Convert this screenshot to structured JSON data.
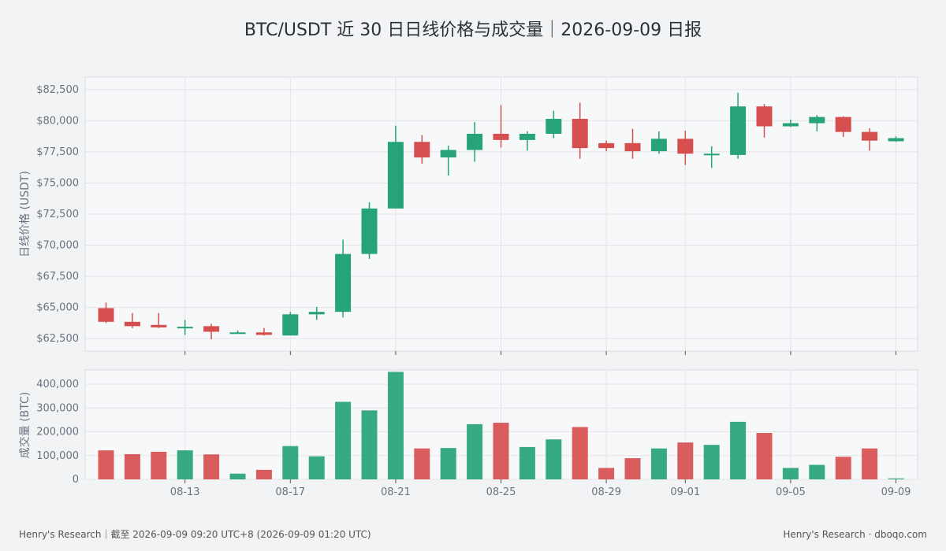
{
  "title": "BTC/USDT 近 30 日日线价格与成交量｜2026-09-09 日报",
  "footer": {
    "left": "Henry's Research｜截至 2026-09-09 09:20 UTC+8 (2026-09-09 01:20 UTC)",
    "right": "Henry's Research · dboqo.com"
  },
  "colors": {
    "up": "#26a37a",
    "down": "#d64f4f",
    "background": "#f2f3f5",
    "panel": "#f7f8fa",
    "grid": "#e3e5e8"
  },
  "chart_data": [
    {
      "type": "candlestick",
      "ylabel": "日线价格 (USDT)",
      "ylim": [
        61500,
        83500
      ],
      "yticks": [
        62500,
        65000,
        67500,
        70000,
        72500,
        75000,
        77500,
        80000,
        82500
      ],
      "ytick_labels": [
        "$62,500",
        "$65,000",
        "$67,500",
        "$70,000",
        "$72,500",
        "$75,000",
        "$77,500",
        "$80,000",
        "$82,500"
      ],
      "grid": true,
      "dates": [
        "08-10",
        "08-11",
        "08-12",
        "08-13",
        "08-14",
        "08-15",
        "08-16",
        "08-17",
        "08-18",
        "08-19",
        "08-20",
        "08-21",
        "08-22",
        "08-23",
        "08-24",
        "08-25",
        "08-26",
        "08-27",
        "08-28",
        "08-29",
        "08-30",
        "08-31",
        "09-01",
        "09-02",
        "09-03",
        "09-04",
        "09-05",
        "09-06",
        "09-07",
        "09-08",
        "09-09"
      ],
      "open": [
        64950,
        63850,
        63600,
        63450,
        63500,
        63000,
        63000,
        62750,
        64450,
        64650,
        69300,
        72950,
        78300,
        77050,
        77650,
        78950,
        78450,
        78950,
        80150,
        78200,
        78200,
        77550,
        78550,
        77350,
        77250,
        81150,
        79550,
        79800,
        80300,
        79100,
        78350
      ],
      "high": [
        65400,
        64550,
        64550,
        64000,
        63700,
        63150,
        63350,
        64650,
        65050,
        70450,
        73450,
        79600,
        78850,
        78000,
        79900,
        81250,
        79150,
        80800,
        81450,
        78400,
        79350,
        79150,
        79200,
        77950,
        82250,
        81350,
        80100,
        80450,
        80350,
        79400,
        78750
      ],
      "low": [
        63750,
        63350,
        63350,
        62800,
        62450,
        62900,
        62750,
        62750,
        64000,
        64200,
        68900,
        72950,
        76550,
        75600,
        76700,
        77850,
        77600,
        78600,
        76950,
        77550,
        76950,
        77350,
        76450,
        76200,
        76950,
        78650,
        79500,
        79150,
        78700,
        77600,
        78300
      ],
      "close": [
        63850,
        63500,
        63400,
        63450,
        63050,
        63000,
        62800,
        64450,
        64650,
        69300,
        72950,
        78300,
        77050,
        77650,
        78950,
        78450,
        78950,
        80150,
        77800,
        77800,
        77550,
        78550,
        77350,
        77350,
        81150,
        79550,
        79800,
        80300,
        79100,
        78400,
        78600
      ]
    },
    {
      "type": "bar",
      "ylabel": "成交量 (BTC)",
      "ylim": [
        0,
        460000
      ],
      "yticks": [
        0,
        100000,
        200000,
        300000,
        400000
      ],
      "ytick_labels": [
        "0",
        "100,000",
        "200,000",
        "300,000",
        "400,000"
      ],
      "grid": true,
      "values": [
        122000,
        106000,
        116000,
        122000,
        105000,
        24000,
        40000,
        140000,
        97000,
        326000,
        290000,
        452000,
        130000,
        132000,
        232000,
        238000,
        136000,
        168000,
        220000,
        48000,
        89000,
        130000,
        155000,
        145000,
        242000,
        195000,
        48000,
        61000,
        95000,
        130000,
        4000
      ],
      "xticks": [
        "08-13",
        "08-17",
        "08-21",
        "08-25",
        "08-29",
        "09-01",
        "09-05",
        "09-09"
      ]
    }
  ]
}
